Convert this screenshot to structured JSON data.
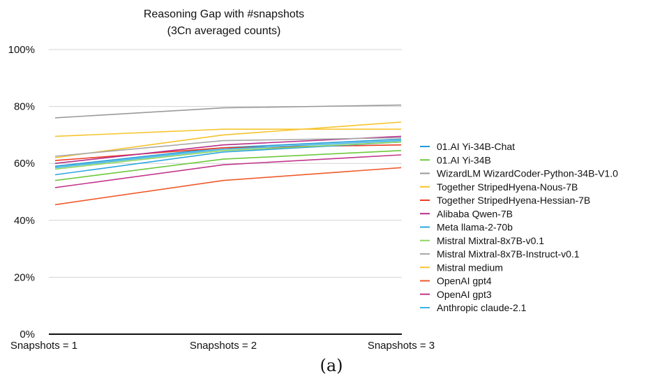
{
  "caption": "(a)",
  "chart_data": {
    "type": "line",
    "title": "Reasoning Gap with #snapshots",
    "subtitle": "(3Cn averaged counts)",
    "xlabel": "",
    "ylabel": "",
    "categories": [
      "Snapshots = 1",
      "Snapshots = 2",
      "Snapshots = 3"
    ],
    "yticks": [
      "0%",
      "20%",
      "40%",
      "60%",
      "80%",
      "100%"
    ],
    "ylim": [
      0,
      100
    ],
    "grid": true,
    "legend_position": "right",
    "series": [
      {
        "name": "01.AI Yi-34B-Chat",
        "color": "#1f9ad6",
        "values": [
          59.0,
          65.5,
          68.5
        ]
      },
      {
        "name": "01.AI Yi-34B",
        "color": "#6cc93b",
        "values": [
          54.0,
          61.5,
          64.5
        ]
      },
      {
        "name": "WizardLM WizardCoder-Python-34B-V1.0",
        "color": "#9a9a9a",
        "values": [
          76.0,
          79.5,
          80.5
        ]
      },
      {
        "name": "Together StripedHyena-Nous-7B",
        "color": "#f5c32c",
        "values": [
          62.0,
          70.0,
          74.5
        ]
      },
      {
        "name": "Together StripedHyena-Hessian-7B",
        "color": "#ee3b24",
        "values": [
          61.0,
          65.5,
          66.5
        ]
      },
      {
        "name": "Alibaba Qwen-7B",
        "color": "#b52d8a",
        "values": [
          60.0,
          66.5,
          69.5
        ]
      },
      {
        "name": "Meta llama-2-70b",
        "color": "#2ba6e0",
        "values": [
          56.0,
          64.0,
          67.5
        ]
      },
      {
        "name": "Mistral Mixtral-8x7B-v0.1",
        "color": "#8fd45f",
        "values": [
          58.0,
          64.5,
          67.5
        ]
      },
      {
        "name": "Mistral Mixtral-8x7B-Instruct-v0.1",
        "color": "#a8a8a8",
        "values": [
          62.5,
          68.0,
          69.0
        ]
      },
      {
        "name": "Mistral medium",
        "color": "#f7c52f",
        "values": [
          69.5,
          72.0,
          72.0
        ]
      },
      {
        "name": "OpenAI gpt4",
        "color": "#ef5a2a",
        "values": [
          45.5,
          54.0,
          58.5
        ]
      },
      {
        "name": "OpenAI gpt3",
        "color": "#c2368c",
        "values": [
          51.5,
          59.5,
          63.0
        ]
      },
      {
        "name": "Anthropic claude-2.1",
        "color": "#3ab3e6",
        "values": [
          58.5,
          65.0,
          68.0
        ]
      }
    ]
  }
}
